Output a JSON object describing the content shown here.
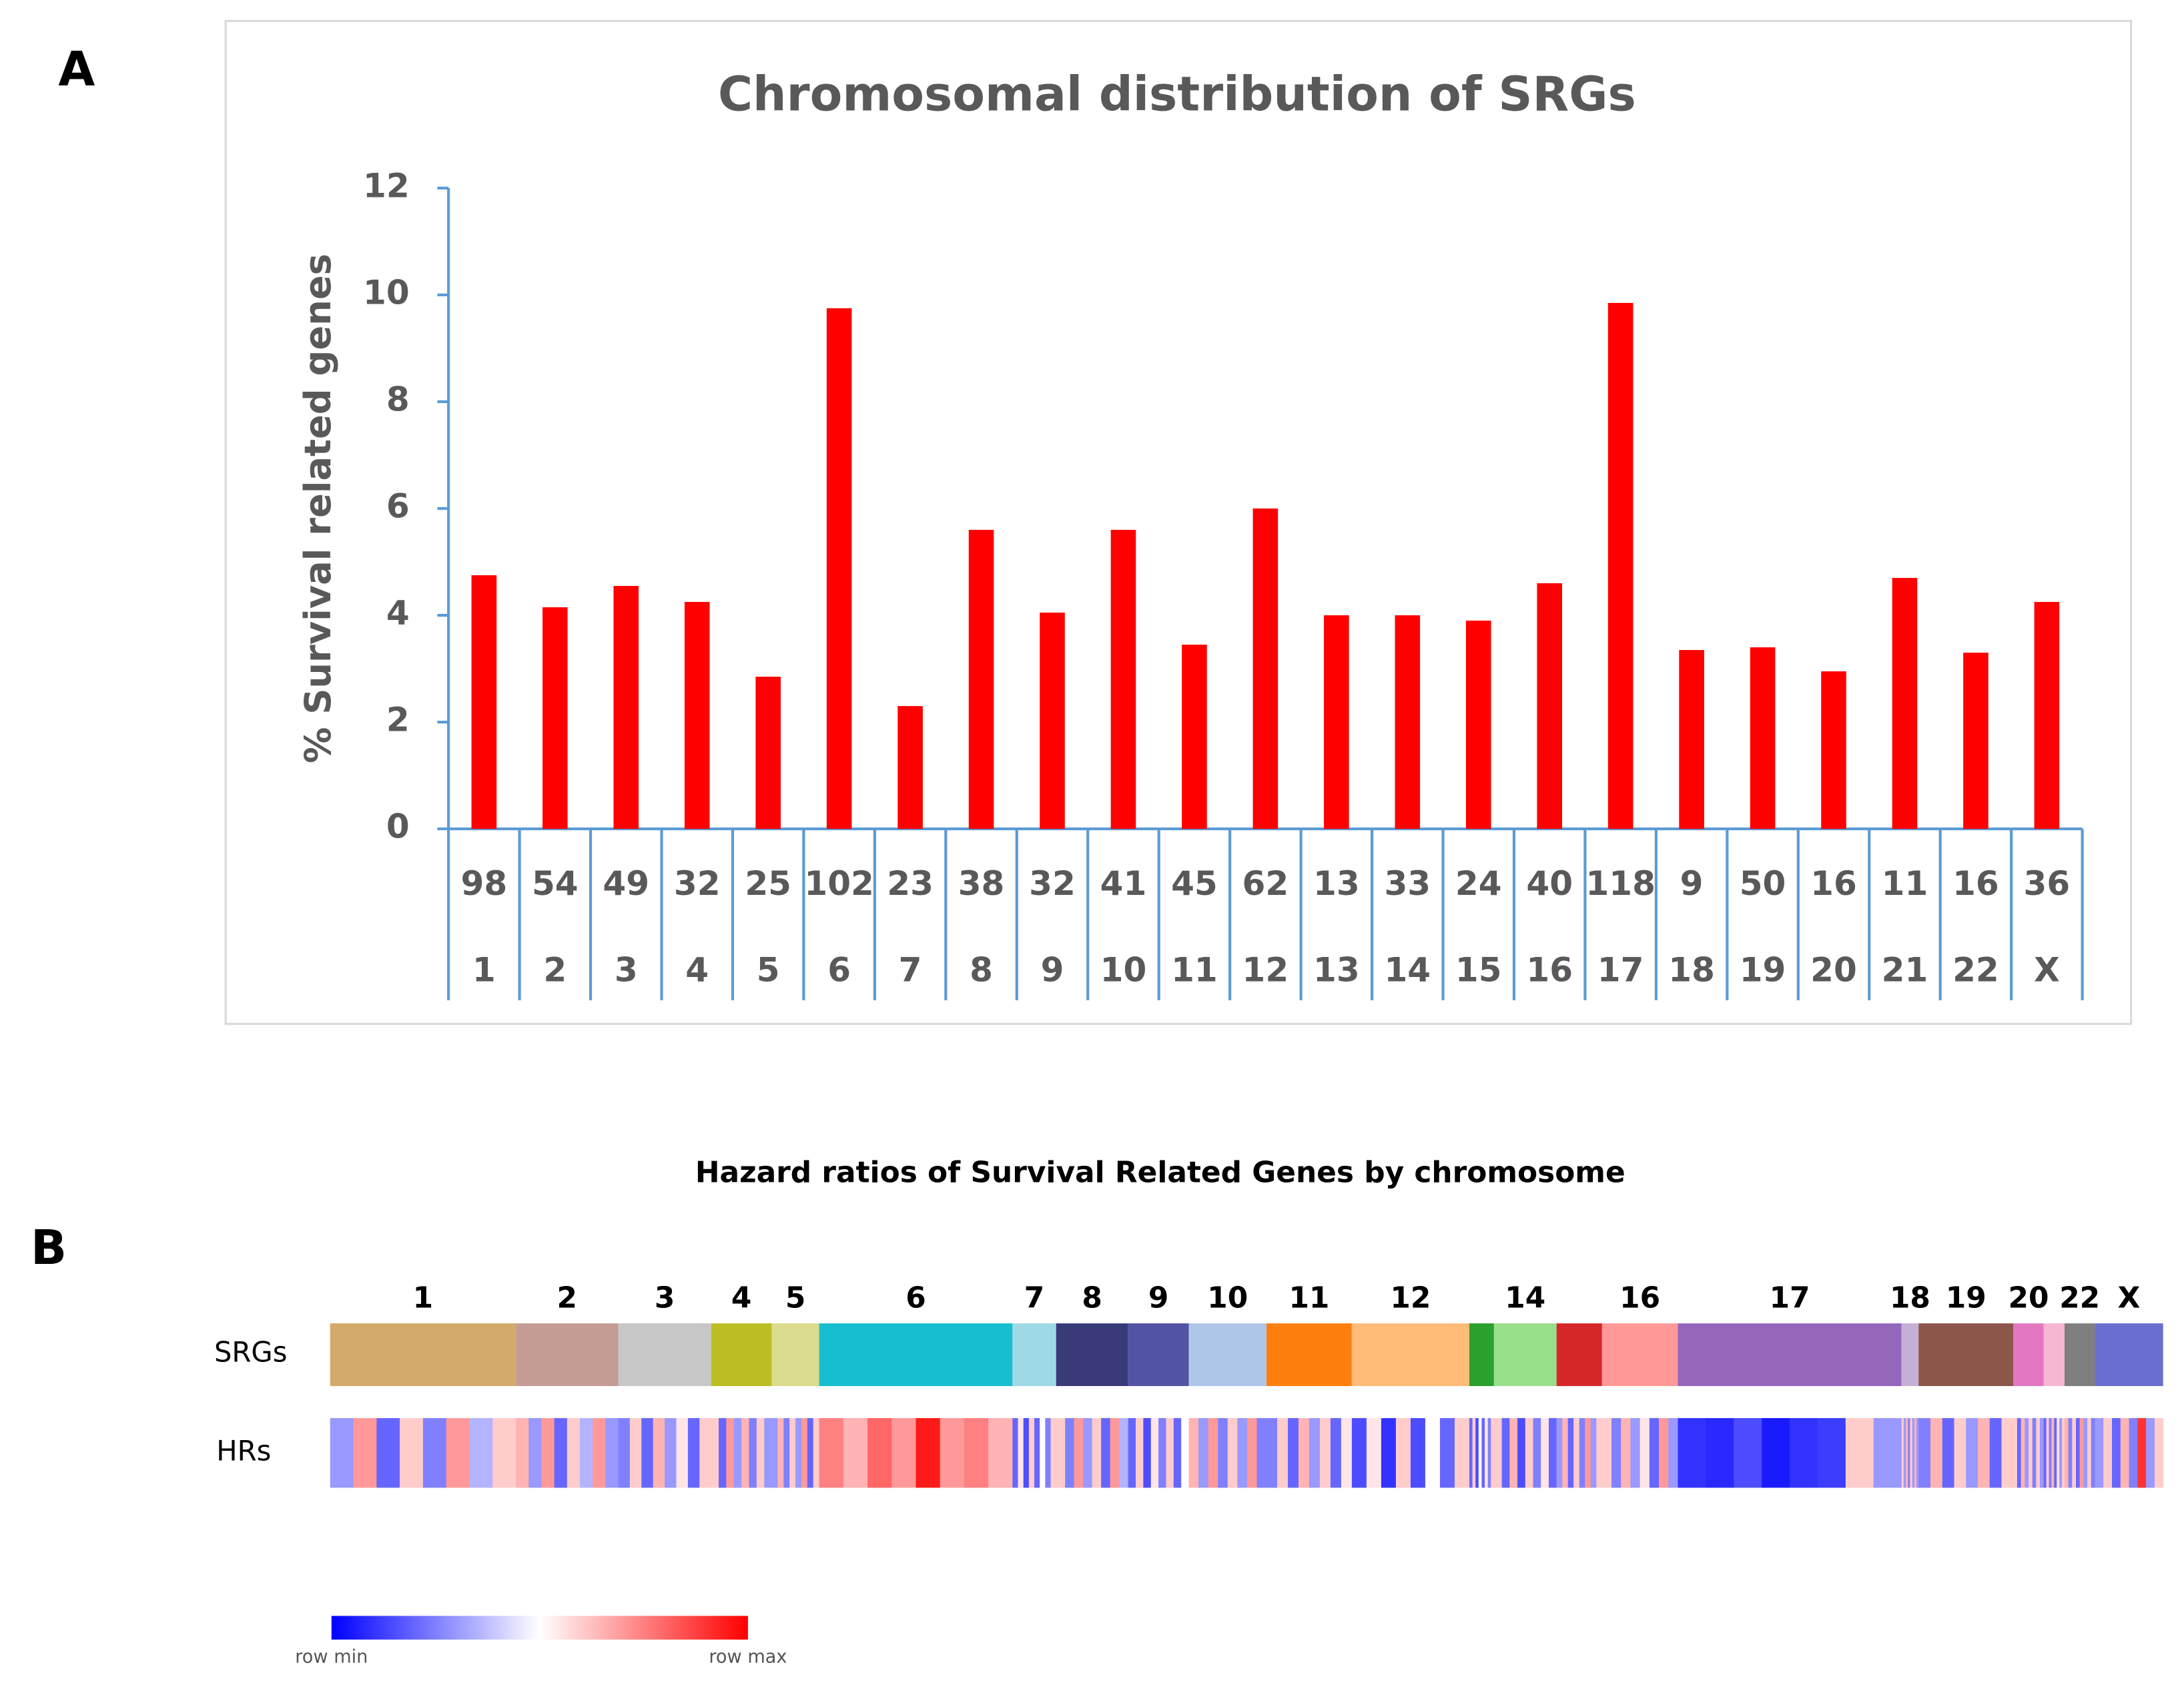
{
  "panels": [
    "A",
    "B"
  ],
  "chart_data": [
    {
      "type": "bar",
      "title": "Chromosomal distribution of SRGs",
      "y_label": "% Survival related genes",
      "categories": [
        "1",
        "2",
        "3",
        "4",
        "5",
        "6",
        "7",
        "8",
        "9",
        "10",
        "11",
        "12",
        "13",
        "14",
        "15",
        "16",
        "17",
        "18",
        "19",
        "20",
        "21",
        "22",
        "X"
      ],
      "gene_counts": [
        98,
        54,
        49,
        32,
        25,
        102,
        23,
        38,
        32,
        41,
        45,
        62,
        13,
        33,
        24,
        40,
        118,
        9,
        50,
        16,
        11,
        16,
        36
      ],
      "values": [
        4.75,
        4.15,
        4.55,
        4.25,
        2.85,
        9.75,
        2.3,
        5.6,
        4.05,
        5.6,
        3.45,
        6.0,
        4.0,
        4.0,
        3.9,
        4.6,
        9.85,
        3.35,
        3.4,
        2.95,
        4.7,
        3.3,
        4.25
      ],
      "color": "#ff0000",
      "ylim": [
        0,
        12
      ],
      "yticks": [
        0,
        2,
        4,
        6,
        8,
        10,
        12
      ]
    },
    {
      "type": "heatmap",
      "title": "Hazard ratios of Survival Related Genes by chromosome",
      "rows": [
        "SRGs",
        "HRs"
      ],
      "segment_labels": [
        "1",
        "2",
        "3",
        "4",
        "5",
        "6",
        "7",
        "8",
        "9",
        "10",
        "11",
        "12",
        null,
        "14",
        null,
        "16",
        "17",
        "18",
        "19",
        "20",
        null,
        "22",
        "X"
      ],
      "colors": [
        "#d4aa6a",
        "#c49c94",
        "#c7c7c7",
        "#bcbd22",
        "#dbdb8d",
        "#17becf",
        "#9edae5",
        "#393b79",
        "#5254a3",
        "#aec7e8",
        "#ff7f0e",
        "#ffbb78",
        "#2ca02c",
        "#98df8a",
        "#d62728",
        "#ff9896",
        "#9467bd",
        "#c5b0d5",
        "#8c564b",
        "#e377c2",
        "#f7b6d2",
        "#7f7f7f",
        "#6b6ecf"
      ],
      "hr_values": [
        [
          0.3,
          0.7,
          0.2,
          0.6,
          0.25,
          0.7,
          0.35,
          0.6
        ],
        [
          0.65,
          0.3,
          0.7,
          0.2,
          0.6,
          0.35,
          0.7,
          0.3
        ],
        [
          0.25,
          0.6,
          0.2,
          0.65,
          0.3,
          0.55,
          0.2,
          0.6
        ],
        [
          0.6,
          0.2,
          0.7,
          0.3,
          0.65,
          0.25,
          0.6,
          0.3
        ],
        [
          0.3,
          0.65,
          0.25,
          0.6,
          0.3,
          0.7,
          0.2,
          0.6
        ],
        [
          0.75,
          0.65,
          0.8,
          0.7,
          0.95,
          0.7,
          0.75,
          0.65
        ],
        [
          0.2,
          0.55,
          0.15,
          0.6,
          0.2,
          0.5,
          0.25,
          0.6
        ],
        [
          0.6,
          0.25,
          0.7,
          0.3,
          0.6,
          0.2,
          0.7,
          0.35
        ],
        [
          0.2,
          0.6,
          0.15,
          0.55,
          0.25,
          0.6,
          0.2,
          0.5
        ],
        [
          0.65,
          0.3,
          0.7,
          0.25,
          0.6,
          0.3,
          0.7,
          0.25
        ],
        [
          0.25,
          0.6,
          0.2,
          0.65,
          0.3,
          0.6,
          0.2,
          0.55
        ],
        [
          0.15,
          0.55,
          0.1,
          0.6,
          0.15,
          0.5,
          0.2,
          0.6
        ],
        [
          0.2,
          0.6,
          0.15,
          0.5,
          0.2,
          0.55,
          0.25,
          0.6
        ],
        [
          0.6,
          0.2,
          0.65,
          0.15,
          0.6,
          0.25,
          0.55,
          0.2
        ],
        [
          0.3,
          0.65,
          0.2,
          0.6,
          0.25,
          0.7,
          0.3,
          0.6
        ],
        [
          0.6,
          0.25,
          0.65,
          0.3,
          0.55,
          0.2,
          0.7,
          0.3
        ],
        [
          0.1,
          0.08,
          0.15,
          0.05,
          0.1,
          0.12,
          0.6,
          0.3
        ],
        [
          0.6,
          0.3,
          0.65,
          0.25,
          0.6,
          0.3,
          0.65,
          0.3
        ],
        [
          0.25,
          0.65,
          0.2,
          0.6,
          0.3,
          0.65,
          0.2,
          0.6
        ],
        [
          0.6,
          0.2,
          0.65,
          0.3,
          0.6,
          0.25,
          0.6,
          0.3
        ],
        [
          0.2,
          0.6,
          0.25,
          0.65,
          0.2,
          0.55,
          0.3,
          0.6
        ],
        [
          0.65,
          0.25,
          0.6,
          0.2,
          0.7,
          0.3,
          0.6,
          0.25
        ],
        [
          0.3,
          0.6,
          0.2,
          0.65,
          0.25,
          0.9,
          0.3,
          0.6
        ]
      ],
      "legend_labels": [
        "row min",
        "row max"
      ]
    }
  ]
}
